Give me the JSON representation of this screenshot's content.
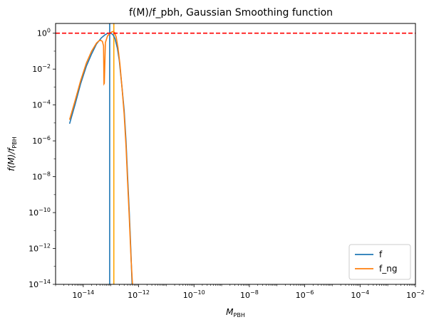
{
  "chart_data": {
    "type": "line",
    "title": "f(M)/f_pbh, Gaussian Smoothing function",
    "xlabel": {
      "main": "M",
      "sub": "PBH"
    },
    "ylabel": {
      "main": "f(M)/f",
      "sub": "PBH"
    },
    "xscale": "log",
    "yscale": "log",
    "xlim": [
      1e-15,
      0.01
    ],
    "ylim": [
      1e-14,
      3.5
    ],
    "xticks": [
      {
        "value": 1e-14,
        "base": "10",
        "exp": "−14"
      },
      {
        "value": 1e-12,
        "base": "10",
        "exp": "−12"
      },
      {
        "value": 1e-10,
        "base": "10",
        "exp": "−10"
      },
      {
        "value": 1e-08,
        "base": "10",
        "exp": "−8"
      },
      {
        "value": 1e-06,
        "base": "10",
        "exp": "−6"
      },
      {
        "value": 0.0001,
        "base": "10",
        "exp": "−4"
      },
      {
        "value": 0.01,
        "base": "10",
        "exp": "−2"
      }
    ],
    "yticks": [
      {
        "value": 1e-14,
        "base": "10",
        "exp": "−14"
      },
      {
        "value": 1e-12,
        "base": "10",
        "exp": "−12"
      },
      {
        "value": 1e-10,
        "base": "10",
        "exp": "−10"
      },
      {
        "value": 1e-08,
        "base": "10",
        "exp": "−8"
      },
      {
        "value": 1e-06,
        "base": "10",
        "exp": "−6"
      },
      {
        "value": 0.0001,
        "base": "10",
        "exp": "−4"
      },
      {
        "value": 0.01,
        "base": "10",
        "exp": "−2"
      },
      {
        "value": 1,
        "base": "10",
        "exp": "0"
      }
    ],
    "series": [
      {
        "name": "f",
        "color": "#1f77b4",
        "points": [
          [
            3.2e-15,
            9e-06
          ],
          [
            5e-15,
            0.0001
          ],
          [
            8e-15,
            0.0015
          ],
          [
            1.3e-14,
            0.015
          ],
          [
            2e-14,
            0.07
          ],
          [
            3e-14,
            0.25
          ],
          [
            4.5e-14,
            0.55
          ],
          [
            6e-14,
            0.8
          ],
          [
            7.5e-14,
            0.98
          ],
          [
            9e-14,
            1.02
          ],
          [
            1.05e-13,
            0.95
          ],
          [
            1.2e-13,
            0.8
          ],
          [
            1.4e-13,
            0.5
          ],
          [
            1.7e-13,
            0.15
          ],
          [
            2e-13,
            0.03
          ],
          [
            2.5e-13,
            0.001
          ],
          [
            3e-13,
            5e-05
          ],
          [
            3.5e-13,
            1e-06
          ],
          [
            4e-13,
            1e-08
          ],
          [
            4.6e-13,
            1e-10
          ],
          [
            5.2e-13,
            1e-12
          ],
          [
            5.8e-13,
            1e-14
          ]
        ]
      },
      {
        "name": "f_ng",
        "color": "#ff7f0e",
        "points": [
          [
            3.2e-15,
            1.5e-05
          ],
          [
            5e-15,
            0.00016
          ],
          [
            8e-15,
            0.0022
          ],
          [
            1.3e-14,
            0.022
          ],
          [
            2e-14,
            0.1
          ],
          [
            3e-14,
            0.28
          ],
          [
            3.7e-14,
            0.38
          ],
          [
            4.3e-14,
            0.4
          ],
          [
            4.9e-14,
            0.35
          ],
          [
            5.4e-14,
            0.2
          ],
          [
            5.6e-14,
            0.0015
          ],
          [
            5.75e-14,
            0.0016
          ],
          [
            6.3e-14,
            0.3
          ],
          [
            7.5e-14,
            0.7
          ],
          [
            9e-14,
            0.95
          ],
          [
            1.05e-13,
            1.15
          ],
          [
            1.2e-13,
            1.25
          ],
          [
            1.35e-13,
            1.1
          ],
          [
            1.55e-13,
            0.6
          ],
          [
            1.8e-13,
            0.15
          ],
          [
            2.1e-13,
            0.02
          ],
          [
            2.5e-13,
            0.001
          ],
          [
            3e-13,
            3e-05
          ],
          [
            3.5e-13,
            5e-07
          ],
          [
            4e-13,
            5e-09
          ],
          [
            4.6e-13,
            5e-11
          ],
          [
            5.3e-13,
            3e-13
          ],
          [
            6e-13,
            1e-14
          ]
        ]
      }
    ],
    "vlines": [
      {
        "x": 9e-14,
        "color": "#1f77b4"
      },
      {
        "x": 1.27e-13,
        "color": "#ffa500"
      }
    ],
    "hlines": [
      {
        "y": 1,
        "color": "#ff0000",
        "style": "dashed"
      }
    ],
    "legend": {
      "placement": "lower-right",
      "entries": [
        "f",
        "f_ng"
      ]
    },
    "grid": false
  }
}
